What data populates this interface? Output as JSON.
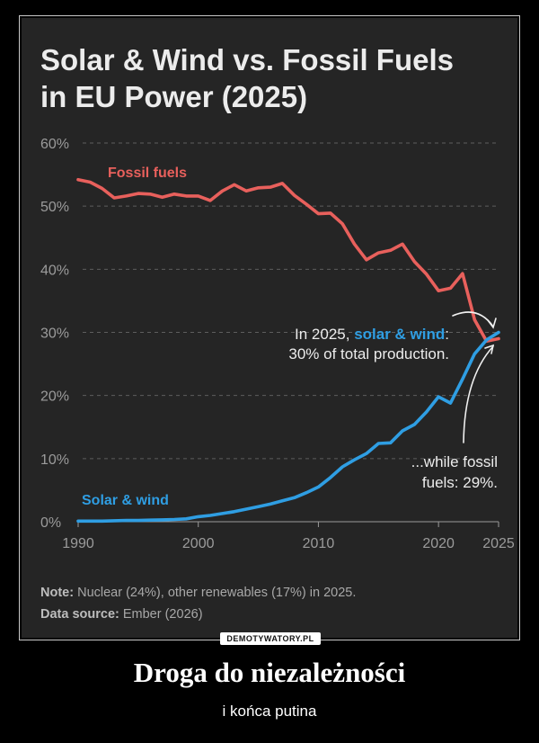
{
  "poster": {
    "caption": "Droga do niezależności",
    "subcaption": "i końca putina",
    "watermark": "DEMOTYWATORY.PL"
  },
  "chart_data": {
    "type": "line",
    "title_line1": "Solar & Wind vs. Fossil Fuels",
    "title_line2": "in EU Power (2025)",
    "xlim": [
      1990,
      2025
    ],
    "ylim": [
      0,
      60
    ],
    "x_ticks": [
      {
        "value": 1990,
        "label": "1990"
      },
      {
        "value": 2000,
        "label": "2000"
      },
      {
        "value": 2010,
        "label": "2010"
      },
      {
        "value": 2020,
        "label": "2020"
      },
      {
        "value": 2025,
        "label": "2025"
      }
    ],
    "y_ticks": [
      {
        "value": 0,
        "label": "0%"
      },
      {
        "value": 10,
        "label": "10%"
      },
      {
        "value": 20,
        "label": "20%"
      },
      {
        "value": 30,
        "label": "30%"
      },
      {
        "value": 40,
        "label": "40%"
      },
      {
        "value": 50,
        "label": "50%"
      },
      {
        "value": 60,
        "label": "60%"
      }
    ],
    "grid": true,
    "x": [
      1990,
      1991,
      1992,
      1993,
      1994,
      1995,
      1996,
      1997,
      1998,
      1999,
      2000,
      2001,
      2002,
      2003,
      2004,
      2005,
      2006,
      2007,
      2008,
      2009,
      2010,
      2011,
      2012,
      2013,
      2014,
      2015,
      2016,
      2017,
      2018,
      2019,
      2020,
      2021,
      2022,
      2023,
      2024,
      2025
    ],
    "series": [
      {
        "name": "Fossil fuels",
        "label": "Fossil fuels",
        "color": "#e8605c",
        "values": [
          54.2,
          53.8,
          52.8,
          51.3,
          51.6,
          52.0,
          51.9,
          51.4,
          51.9,
          51.6,
          51.6,
          50.9,
          52.4,
          53.4,
          52.4,
          52.9,
          53.0,
          53.6,
          51.7,
          50.3,
          48.8,
          48.9,
          47.2,
          44.0,
          41.5,
          42.6,
          43.0,
          44.0,
          41.2,
          39.2,
          36.6,
          37.0,
          39.3,
          32.0,
          28.6,
          29.0
        ]
      },
      {
        "name": "Solar & wind",
        "label": "Solar & wind",
        "color": "#2f9ee3",
        "values": [
          0.1,
          0.1,
          0.1,
          0.15,
          0.2,
          0.2,
          0.25,
          0.3,
          0.35,
          0.45,
          0.8,
          1.0,
          1.3,
          1.6,
          2.0,
          2.4,
          2.8,
          3.3,
          3.8,
          4.6,
          5.5,
          7.0,
          8.7,
          9.8,
          10.8,
          12.4,
          12.5,
          14.4,
          15.4,
          17.4,
          19.8,
          18.8,
          22.6,
          26.6,
          28.8,
          30.0
        ]
      }
    ],
    "annotations": {
      "solar_prefix": "In 2025, ",
      "solar_highlight": "solar & wind",
      "solar_suffix": ":",
      "solar_line2": "30% of total production.",
      "fossil_line1": "...while fossil",
      "fossil_line2": "fuels: 29%."
    },
    "note_label": "Note:",
    "note_text": " Nuclear (24%), other renewables (17%) in 2025.",
    "source_label": "Data source:",
    "source_text": " Ember (2026)"
  }
}
